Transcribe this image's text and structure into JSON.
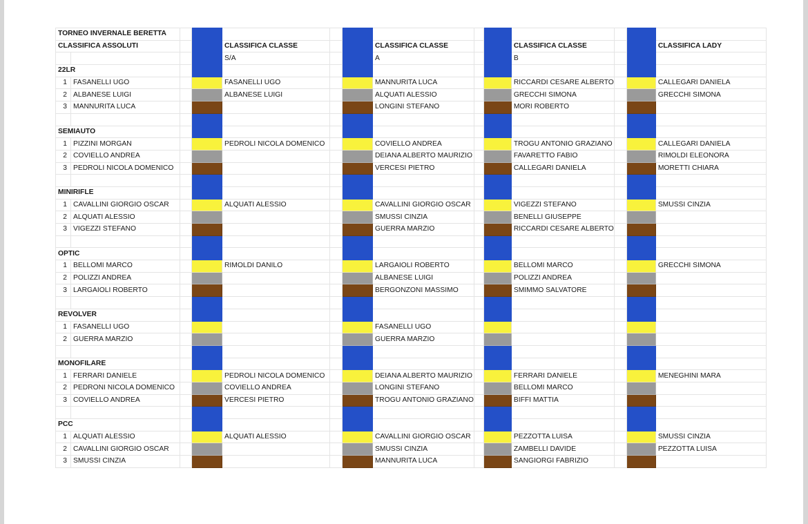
{
  "sheet": {
    "title": "TORNEO INVERNALE BERETTA",
    "headers": {
      "assoluti": "CLASSIFICA ASSOLUTI",
      "sa": "CLASSIFICA CLASSE",
      "a": "CLASSIFICA CLASSE",
      "b": "CLASSIFICA CLASSE",
      "lady": "CLASSIFICA LADY"
    },
    "subheaders": {
      "sa": "S/A",
      "a": "A",
      "b": "B"
    },
    "sections": [
      {
        "name": "22LR",
        "rows": [
          {
            "pos": "1",
            "assoluti": "FASANELLI UGO",
            "sa": "FASANELLI UGO",
            "a": "MANNURITA LUCA",
            "b": "RICCARDI CESARE ALBERTO",
            "lady": "CALLEGARI DANIELA"
          },
          {
            "pos": "2",
            "assoluti": "ALBANESE LUIGI",
            "sa": "ALBANESE LUIGI",
            "a": "ALQUATI ALESSIO",
            "b": "GRECCHI SIMONA",
            "lady": "GRECCHI SIMONA"
          },
          {
            "pos": "3",
            "assoluti": "MANNURITA LUCA",
            "sa": "",
            "a": "LONGINI STEFANO",
            "b": "MORI ROBERTO",
            "lady": ""
          }
        ]
      },
      {
        "name": "SEMIAUTO",
        "rows": [
          {
            "pos": "1",
            "assoluti": "PIZZINI MORGAN",
            "sa": "PEDROLI NICOLA DOMENICO",
            "a": "COVIELLO ANDREA",
            "b": "TROGU ANTONIO GRAZIANO",
            "lady": "CALLEGARI DANIELA"
          },
          {
            "pos": "2",
            "assoluti": "COVIELLO ANDREA",
            "sa": "",
            "a": "DEIANA ALBERTO MAURIZIO",
            "b": "FAVARETTO FABIO",
            "lady": "RIMOLDI ELEONORA"
          },
          {
            "pos": "3",
            "assoluti": "PEDROLI NICOLA DOMENICO",
            "sa": "",
            "a": "VERCESI PIETRO",
            "b": "CALLEGARI DANIELA",
            "lady": "MORETTI CHIARA"
          }
        ]
      },
      {
        "name": "MINIRIFLE",
        "rows": [
          {
            "pos": "1",
            "assoluti": "CAVALLINI GIORGIO OSCAR",
            "sa": "ALQUATI ALESSIO",
            "a": "CAVALLINI GIORGIO OSCAR",
            "b": "VIGEZZI STEFANO",
            "lady": "SMUSSI CINZIA"
          },
          {
            "pos": "2",
            "assoluti": "ALQUATI ALESSIO",
            "sa": "",
            "a": "SMUSSI CINZIA",
            "b": "BENELLI GIUSEPPE",
            "lady": ""
          },
          {
            "pos": "3",
            "assoluti": "VIGEZZI STEFANO",
            "sa": "",
            "a": "GUERRA MARZIO",
            "b": "RICCARDI CESARE ALBERTO",
            "lady": ""
          }
        ]
      },
      {
        "name": "OPTIC",
        "rows": [
          {
            "pos": "1",
            "assoluti": "BELLOMI MARCO",
            "sa": "RIMOLDI DANILO",
            "a": "LARGAIOLI ROBERTO",
            "b": "BELLOMI MARCO",
            "lady": "GRECCHI SIMONA"
          },
          {
            "pos": "2",
            "assoluti": "POLIZZI ANDREA",
            "sa": "",
            "a": "ALBANESE LUIGI",
            "b": "POLIZZI ANDREA",
            "lady": ""
          },
          {
            "pos": "3",
            "assoluti": "LARGAIOLI ROBERTO",
            "sa": "",
            "a": "BERGONZONI MASSIMO",
            "b": "SMIMMO SALVATORE",
            "lady": ""
          }
        ]
      },
      {
        "name": "REVOLVER",
        "rows": [
          {
            "pos": "1",
            "assoluti": "FASANELLI UGO",
            "sa": "",
            "a": "FASANELLI UGO",
            "b": "",
            "lady": ""
          },
          {
            "pos": "2",
            "assoluti": "GUERRA MARZIO",
            "sa": "",
            "a": "GUERRA MARZIO",
            "b": "",
            "lady": ""
          }
        ]
      },
      {
        "name": "MONOFILARE",
        "rows": [
          {
            "pos": "1",
            "assoluti": "FERRARI DANIELE",
            "sa": "PEDROLI NICOLA DOMENICO",
            "a": "DEIANA ALBERTO MAURIZIO",
            "b": "FERRARI DANIELE",
            "lady": "MENEGHINI MARA"
          },
          {
            "pos": "2",
            "assoluti": "PEDRONI NICOLA DOMENICO",
            "sa": "COVIELLO ANDREA",
            "a": "LONGINI STEFANO",
            "b": "BELLOMI MARCO",
            "lady": ""
          },
          {
            "pos": "3",
            "assoluti": "COVIELLO ANDREA",
            "sa": "VERCESI PIETRO",
            "a": "TROGU ANTONIO GRAZIANO",
            "b": "BIFFI MATTIA",
            "lady": ""
          }
        ]
      },
      {
        "name": "PCC",
        "rows": [
          {
            "pos": "1",
            "assoluti": "ALQUATI ALESSIO",
            "sa": "ALQUATI ALESSIO",
            "a": "CAVALLINI GIORGIO OSCAR",
            "b": "PEZZOTTA LUISA",
            "lady": "SMUSSI CINZIA"
          },
          {
            "pos": "2",
            "assoluti": "CAVALLINI GIORGIO OSCAR",
            "sa": "",
            "a": "SMUSSI CINZIA",
            "b": "ZAMBELLI DAVIDE",
            "lady": "PEZZOTTA LUISA"
          },
          {
            "pos": "3",
            "assoluti": "SMUSSI CINZIA",
            "sa": "",
            "a": "MANNURITA LUCA",
            "b": "SANGIORGI FABRIZIO",
            "lady": ""
          }
        ]
      }
    ]
  },
  "colors": {
    "spacer_blue": "#2450c8",
    "medal_gold": "#f8f23c",
    "medal_silver": "#9a9a9a",
    "medal_bronze": "#7a4616"
  }
}
